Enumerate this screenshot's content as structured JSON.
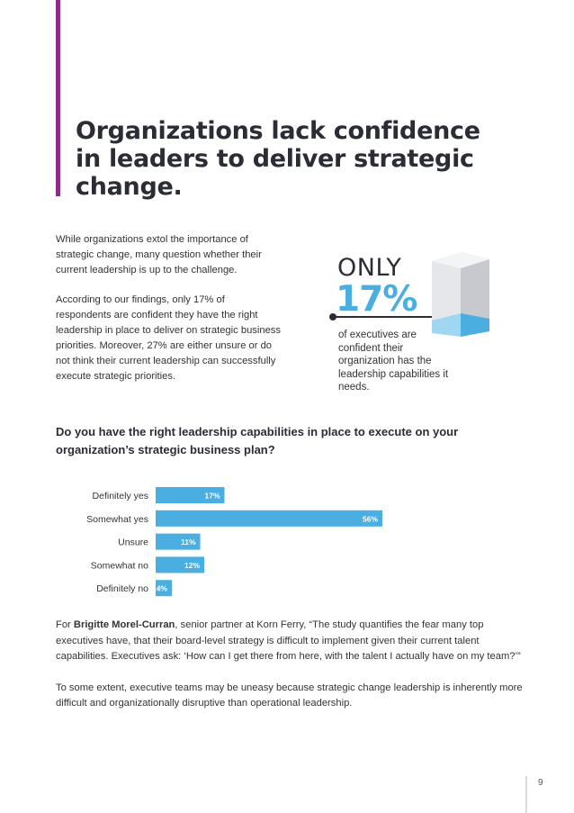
{
  "title_lines": [
    "Organizations lack confidence",
    "in leaders to deliver strategic",
    "change."
  ],
  "intro_paragraphs": [
    "While organizations extol the importance of strategic change, many question whether their current leadership is up to the challenge.",
    "According to our findings, only 17% of respondents are confident they have the right leadership in place to deliver on strategic business priorities. Moreover, 27% are either unsure or do not think their current leadership can successfully execute strategic priorities."
  ],
  "callout": {
    "only": "ONLY",
    "percent": "17%",
    "text": "of executives are confident their organization has the leadership capabilities it needs."
  },
  "question": "Do you have the right leadership capabilities in place to execute on your organization’s strategic business plan?",
  "chart_data": {
    "type": "bar",
    "orientation": "horizontal",
    "categories": [
      "Definitely yes",
      "Somewhat yes",
      "Unsure",
      "Somewhat no",
      "Definitely no"
    ],
    "values": [
      17,
      56,
      11,
      12,
      4
    ],
    "value_labels": [
      "17%",
      "56%",
      "11%",
      "12%",
      "4%"
    ],
    "bar_color": "#4aaee0",
    "grid": false
  },
  "footer": {
    "para1_prefix": "For ",
    "para1_name": "Brigitte Morel-Curran",
    "para1_rest": ", senior partner at Korn Ferry, “The study quantifies the fear many top executives have, that their board-level strategy is difficult to implement given their current talent capabilities. Executives ask: ‘How can I get there from here, with the talent I actually have on my team?’”",
    "para2": "To some extent, executive teams may be uneasy because strategic change leadership is inherently more difficult and organizationally disruptive than operational leadership."
  },
  "page_number": "9",
  "colors": {
    "accent": "#8e2a8a",
    "bar": "#4aaee0",
    "heading": "#2b2d36"
  }
}
